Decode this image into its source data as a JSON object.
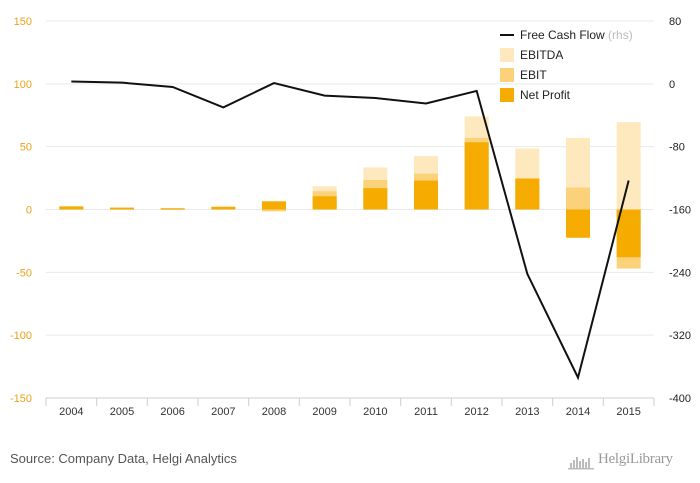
{
  "chart_data": {
    "type": "bar",
    "categories": [
      "2004",
      "2005",
      "2006",
      "2007",
      "2008",
      "2009",
      "2010",
      "2011",
      "2012",
      "2013",
      "2014",
      "2015"
    ],
    "series": [
      {
        "name": "EBITDA",
        "kind": "bar",
        "axis": "left",
        "values": [
          2,
          1.5,
          1,
          3,
          6.5,
          18.5,
          33.5,
          42.5,
          74,
          48.5,
          57,
          69.5
        ],
        "color": "#fde9bd"
      },
      {
        "name": "EBIT",
        "kind": "bar",
        "axis": "left",
        "values": [
          1.5,
          1,
          0.5,
          2,
          -1.5,
          14.5,
          23.5,
          28.5,
          57,
          25,
          17.5,
          -47
        ],
        "color": "#fbd27a"
      },
      {
        "name": "Net Profit",
        "kind": "bar",
        "axis": "left",
        "values": [
          2.5,
          1.5,
          1,
          2,
          6.5,
          10.5,
          17,
          23,
          53.5,
          24.5,
          -22.5,
          -38
        ],
        "color": "#f6ab00"
      },
      {
        "name": "Free Cash Flow",
        "kind": "line",
        "axis": "right",
        "values": [
          3,
          1.5,
          -4,
          -30,
          1,
          -15,
          -18,
          -25,
          -9,
          -242,
          -374,
          -123
        ],
        "color": "#111111"
      }
    ],
    "legend_suffix": "(rhs)",
    "y_left": {
      "min": -150,
      "max": 150,
      "ticks": [
        150,
        100,
        50,
        0,
        -50,
        -100,
        -150
      ]
    },
    "y_right": {
      "min": -400,
      "max": 80,
      "ticks": [
        80,
        0,
        -80,
        -160,
        -240,
        -320,
        -400
      ]
    },
    "legend_position": "top-right",
    "grid": true,
    "title": "",
    "xlabel": "",
    "ylabel": ""
  },
  "footer": {
    "source": "Source: Company Data, Helgi Analytics",
    "logo_text": "HelgiLibrary"
  }
}
